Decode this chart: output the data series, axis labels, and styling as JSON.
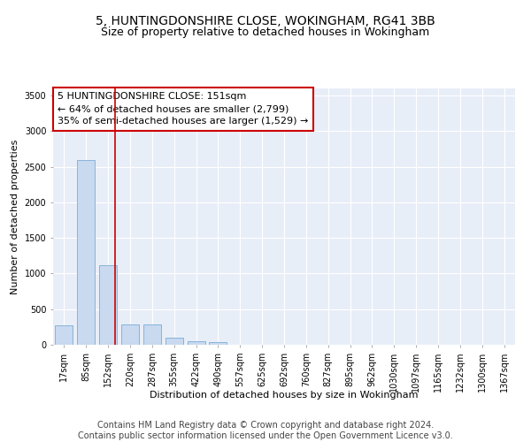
{
  "title1": "5, HUNTINGDONSHIRE CLOSE, WOKINGHAM, RG41 3BB",
  "title2": "Size of property relative to detached houses in Wokingham",
  "xlabel": "Distribution of detached houses by size in Wokingham",
  "ylabel": "Number of detached properties",
  "bar_labels": [
    "17sqm",
    "85sqm",
    "152sqm",
    "220sqm",
    "287sqm",
    "355sqm",
    "422sqm",
    "490sqm",
    "557sqm",
    "625sqm",
    "692sqm",
    "760sqm",
    "827sqm",
    "895sqm",
    "962sqm",
    "1030sqm",
    "1097sqm",
    "1165sqm",
    "1232sqm",
    "1300sqm",
    "1367sqm"
  ],
  "bar_values": [
    270,
    2600,
    1120,
    285,
    285,
    95,
    55,
    40,
    0,
    0,
    0,
    0,
    0,
    0,
    0,
    0,
    0,
    0,
    0,
    0,
    0
  ],
  "bar_color": "#c8d9f0",
  "bar_edge_color": "#7aadd4",
  "highlight_bar_index": 2,
  "highlight_line_color": "#cc0000",
  "annotation_text": "5 HUNTINGDONSHIRE CLOSE: 151sqm\n← 64% of detached houses are smaller (2,799)\n35% of semi-detached houses are larger (1,529) →",
  "annotation_box_color": "#ffffff",
  "annotation_border_color": "#cc0000",
  "ylim": [
    0,
    3600
  ],
  "yticks": [
    0,
    500,
    1000,
    1500,
    2000,
    2500,
    3000,
    3500
  ],
  "background_color": "#e8eef8",
  "grid_color": "#ffffff",
  "footer_text": "Contains HM Land Registry data © Crown copyright and database right 2024.\nContains public sector information licensed under the Open Government Licence v3.0.",
  "title_fontsize": 10,
  "subtitle_fontsize": 9,
  "axis_label_fontsize": 8,
  "tick_fontsize": 7,
  "annotation_fontsize": 8,
  "footer_fontsize": 7
}
